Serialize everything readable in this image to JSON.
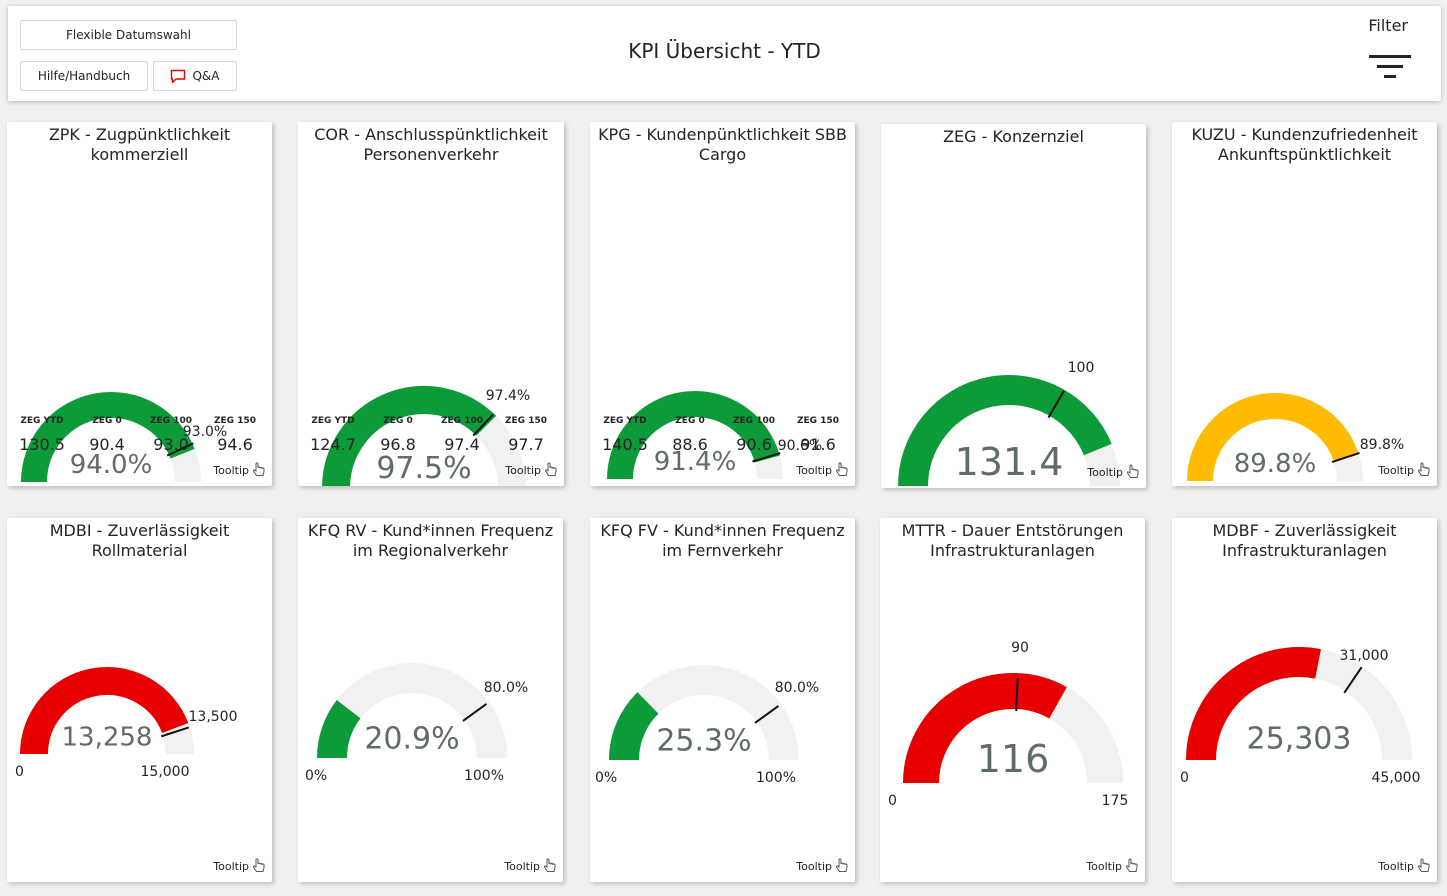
{
  "header": {
    "title": "KPI Übersicht - YTD",
    "date_button": "Flexible Datumswahl",
    "help_button": "Hilfe/Handbuch",
    "qa_button": "Q&A",
    "filter_label": "Filter"
  },
  "colors": {
    "green": "#0d9b3a",
    "red": "#e80000",
    "yellow": "#ffbb00",
    "track": "#f1f1f1"
  },
  "cards": [
    {
      "title": "ZPK - Zugpünktlichkeit kommerziell",
      "value": "94.0%",
      "min": "50%",
      "max": "100%",
      "target_label": "93.0%",
      "range_min": 50,
      "range_max": 100,
      "fill_value": 94.0,
      "target_value": 93.0,
      "color": "green",
      "stats": [
        {
          "label": "ZEG YTD",
          "value": "130.5"
        },
        {
          "label": "ZEG 0",
          "value": "90.4"
        },
        {
          "label": "ZEG 100",
          "value": "93.0"
        },
        {
          "label": "ZEG 150",
          "value": "94.6"
        }
      ],
      "tooltip": "Tooltip"
    },
    {
      "title": "COR - Anschlusspünktlichkeit Personenverkehr",
      "value": "97.5%",
      "min": "90%",
      "max": "100%",
      "target_label": "97.4%",
      "range_min": 90,
      "range_max": 100,
      "fill_value": 97.5,
      "target_value": 97.4,
      "color": "green",
      "stats": [
        {
          "label": "ZEG YTD",
          "value": "124.7"
        },
        {
          "label": "ZEG 0",
          "value": "96.8"
        },
        {
          "label": "ZEG 100",
          "value": "97.4"
        },
        {
          "label": "ZEG 150",
          "value": "97.7"
        }
      ],
      "tooltip": "Tooltip"
    },
    {
      "title": "KPG - Kundenpünktlichkeit SBB Cargo",
      "value": "91.4%",
      "min": "0%",
      "max": "100%",
      "target_label": "90.6%",
      "range_min": 0,
      "range_max": 100,
      "fill_value": 91.4,
      "target_value": 90.6,
      "color": "green",
      "stats": [
        {
          "label": "ZEG YTD",
          "value": "140.5"
        },
        {
          "label": "ZEG 0",
          "value": "88.6"
        },
        {
          "label": "ZEG 100",
          "value": "90.6"
        },
        {
          "label": "ZEG 150",
          "value": "91.6"
        }
      ],
      "tooltip": "Tooltip"
    },
    {
      "title": "ZEG - Konzernziel",
      "value": "131.4",
      "min": "0",
      "max": "150",
      "target_label": "100",
      "range_min": 0,
      "range_max": 150,
      "fill_value": 131.4,
      "target_value": 100,
      "color": "green",
      "stats": [],
      "tooltip": "Tooltip"
    },
    {
      "title": "KUZU - Kundenzufriedenheit Ankunftspünktlichkeit",
      "value": "89.8%",
      "min": "0%",
      "max": "100%",
      "target_label": "89.8%",
      "range_min": 0,
      "range_max": 100,
      "fill_value": 89.8,
      "target_value": 89.8,
      "color": "yellow",
      "stats": [],
      "tooltip": "Tooltip"
    },
    {
      "title": "MDBI - Zuverlässigkeit Rollmaterial",
      "value": "13,258",
      "min": "0",
      "max": "15,000",
      "target_label": "13,500",
      "range_min": 0,
      "range_max": 15000,
      "fill_value": 13258,
      "target_value": 13500,
      "color": "red",
      "stats": [],
      "tooltip": "Tooltip"
    },
    {
      "title": "KFQ RV - Kund*innen Frequenz im Regionalverkehr",
      "value": "20.9%",
      "min": "0%",
      "max": "100%",
      "target_label": "80.0%",
      "range_min": 0,
      "range_max": 100,
      "fill_value": 20.9,
      "target_value": 80.0,
      "color": "green",
      "stats": [],
      "tooltip": "Tooltip"
    },
    {
      "title": "KFQ FV - Kund*innen Frequenz im Fernverkehr",
      "value": "25.3%",
      "min": "0%",
      "max": "100%",
      "target_label": "80.0%",
      "range_min": 0,
      "range_max": 100,
      "fill_value": 25.3,
      "target_value": 80.0,
      "color": "green",
      "stats": [],
      "tooltip": "Tooltip"
    },
    {
      "title": "MTTR - Dauer Entstörungen Infrastrukturanlagen",
      "value": "116",
      "min": "0",
      "max": "175",
      "target_label": "90",
      "range_min": 0,
      "range_max": 175,
      "fill_value": 116,
      "target_value": 90,
      "color": "red",
      "stats": [],
      "tooltip": "Tooltip"
    },
    {
      "title": "MDBF - Zuverlässigkeit Infrastrukturanlagen",
      "value": "25,303",
      "min": "0",
      "max": "45,000",
      "target_label": "31,000",
      "range_min": 0,
      "range_max": 45000,
      "fill_value": 25303,
      "target_value": 31000,
      "color": "red",
      "stats": [],
      "tooltip": "Tooltip"
    }
  ]
}
